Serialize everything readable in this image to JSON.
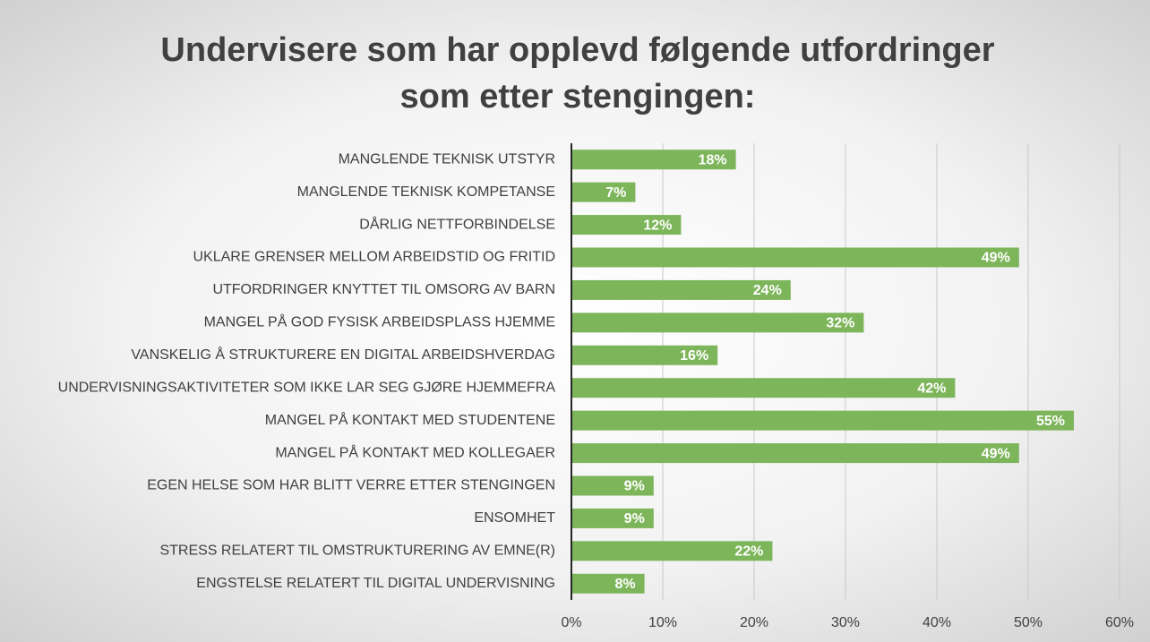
{
  "chart_data": {
    "type": "bar",
    "orientation": "horizontal",
    "title": "Undervisere som har opplevd følgende utfordringer som etter stengingen:",
    "categories": [
      "MANGLENDE TEKNISK UTSTYR",
      "MANGLENDE TEKNISK KOMPETANSE",
      "DÅRLIG NETTFORBINDELSE",
      "UKLARE GRENSER MELLOM ARBEIDSTID OG FRITID",
      "UTFORDRINGER KNYTTET TIL OMSORG AV BARN",
      "MANGEL PÅ GOD FYSISK ARBEIDSPLASS HJEMME",
      "VANSKELIG Å STRUKTURERE EN DIGITAL ARBEIDSHVERDAG",
      "UNDERVISNINGSAKTIVITETER SOM IKKE LAR SEG GJØRE HJEMMEFRA",
      "MANGEL PÅ KONTAKT MED STUDENTENE",
      "MANGEL PÅ KONTAKT MED KOLLEGAER",
      "EGEN HELSE SOM HAR BLITT VERRE ETTER STENGINGEN",
      "ENSOMHET",
      "STRESS RELATERT TIL OMSTRUKTURERING AV EMNE(R)",
      "ENGSTELSE RELATERT TIL DIGITAL UNDERVISNING"
    ],
    "values": [
      18,
      7,
      12,
      49,
      24,
      32,
      16,
      42,
      55,
      49,
      9,
      9,
      22,
      8
    ],
    "value_labels": [
      "18%",
      "7%",
      "12%",
      "49%",
      "24%",
      "32%",
      "16%",
      "42%",
      "55%",
      "49%",
      "9%",
      "9%",
      "22%",
      "8%"
    ],
    "color": "#7db55a",
    "xlim": [
      0,
      60
    ],
    "xticks": [
      {
        "value": 0,
        "label": "0%"
      },
      {
        "value": 10,
        "label": "10%"
      },
      {
        "value": 20,
        "label": "20%"
      },
      {
        "value": 30,
        "label": "30%"
      },
      {
        "value": 40,
        "label": "40%"
      },
      {
        "value": 50,
        "label": "50%"
      },
      {
        "value": 60,
        "label": "60%"
      }
    ],
    "grid": true
  }
}
